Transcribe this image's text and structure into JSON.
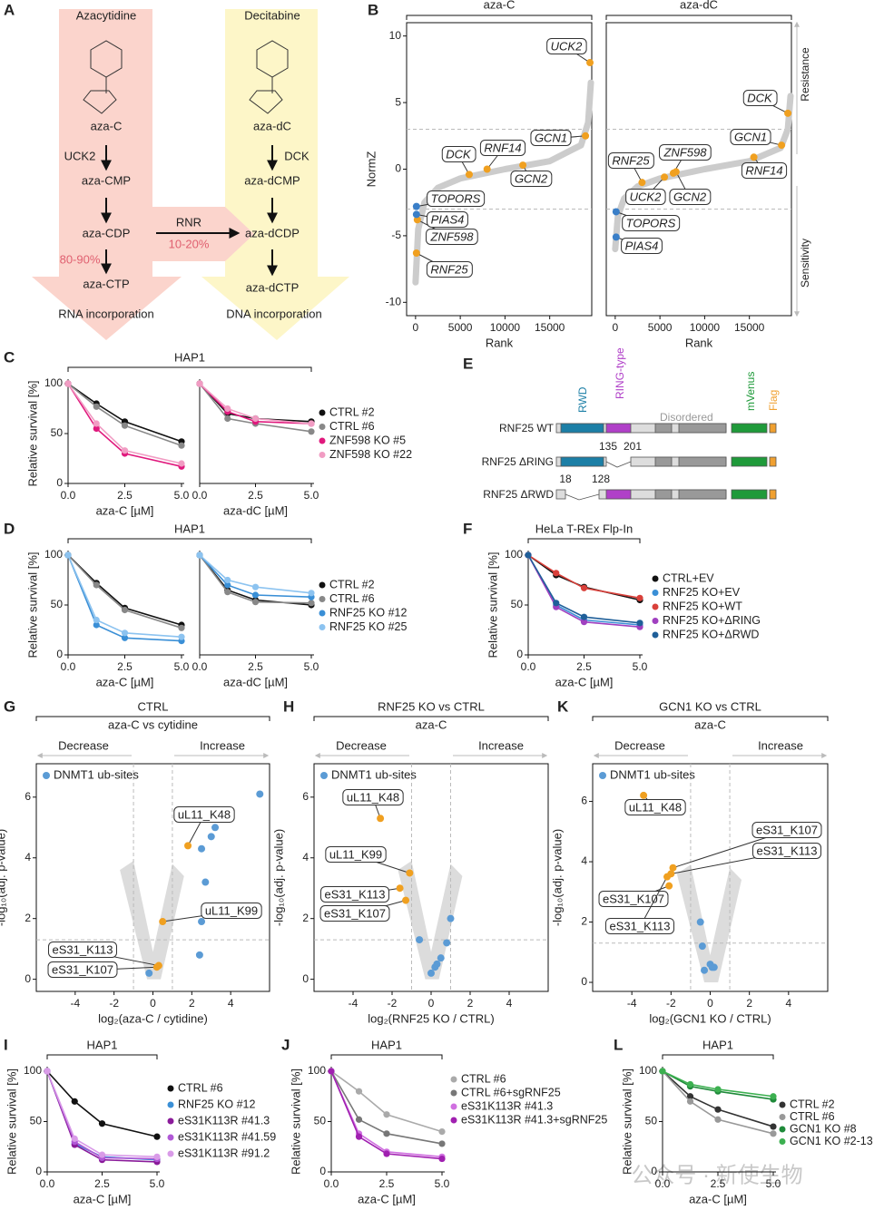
{
  "panel_a": {
    "panel": "A",
    "left": {
      "drug": "Azacytidine",
      "nucleoside": "aza-C",
      "enzyme": "UCK2",
      "steps": [
        "aza-CMP",
        "aza-CDP",
        "aza-CTP"
      ],
      "fraction": "80-90%",
      "fate": "RNA incorporation"
    },
    "right": {
      "drug": "Decitabine",
      "nucleoside": "aza-dC",
      "enzyme": "DCK",
      "steps": [
        "aza-dCMP",
        "aza-dCDP",
        "aza-dCTP"
      ],
      "fate": "DNA incorporation"
    },
    "rnr": "RNR",
    "rnr_fraction": "10-20%"
  },
  "panel_e": {
    "panel": "E",
    "domains": [
      "RWD",
      "RING-type",
      "Disordered",
      "mVenus",
      "Flag"
    ],
    "constructs": [
      "RNF25 WT",
      "RNF25 ΔRING",
      "RNF25 ΔRWD"
    ],
    "ring_cut": [
      "135",
      "201"
    ],
    "rwd_cut": [
      "18",
      "128"
    ]
  },
  "watermark": "公众号 · 新使生物",
  "chart_data": [
    {
      "type": "scatter",
      "panel": "B",
      "title": "aza-C",
      "ylabel": "NormZ",
      "xlabel": "Rank",
      "xlim": [
        -1000,
        19700
      ],
      "ylim": [
        -11,
        11
      ],
      "xticks": [
        0,
        5000,
        10000,
        15000
      ],
      "yticks": [
        -10,
        -5,
        0,
        5,
        10
      ],
      "reference_lines": {
        "y": [
          3,
          -3
        ]
      },
      "series": [
        {
          "color": "#cccccc",
          "line": true,
          "x": [
            0,
            300,
            1000,
            2500,
            5000,
            10000,
            15000,
            18500,
            19300,
            19600
          ],
          "values": [
            -8.5,
            -4.5,
            -2.5,
            -1.4,
            -0.7,
            0,
            0.6,
            1.8,
            3.5,
            6.5
          ]
        },
        {
          "color": "#f0a020",
          "labels": [
            "UCK2",
            "GCN1",
            "GCN2",
            "RNF14",
            "DCK",
            "ZNF598",
            "RNF25"
          ],
          "x": [
            19500,
            19000,
            12000,
            8000,
            6000,
            200,
            100
          ],
          "values": [
            8,
            2.5,
            0.3,
            0,
            -0.4,
            -3.8,
            -6.3
          ]
        },
        {
          "color": "#3a7fc8",
          "labels": [
            "TOPORS",
            "PIAS4"
          ],
          "x": [
            100,
            100
          ],
          "values": [
            -2.8,
            -3.4
          ]
        }
      ]
    },
    {
      "type": "scatter",
      "title": "aza-dC",
      "xlabel": "Rank",
      "xlim": [
        -1000,
        19700
      ],
      "ylim": [
        -11,
        11
      ],
      "xticks": [
        0,
        5000,
        10000,
        15000
      ],
      "reference_lines": {
        "y": [
          3,
          -3
        ]
      },
      "annotations": [
        "Resistance",
        "Sensitivity"
      ],
      "series": [
        {
          "color": "#cccccc",
          "line": true,
          "x": [
            0,
            300,
            1000,
            2500,
            5000,
            10000,
            15000,
            18500,
            19300,
            19600
          ],
          "values": [
            -6,
            -3.5,
            -2.2,
            -1.3,
            -0.7,
            0,
            0.6,
            1.6,
            3,
            5.5
          ]
        },
        {
          "color": "#f0a020",
          "labels": [
            "DCK",
            "GCN1",
            "RNF14",
            "ZNF598",
            "RNF25",
            "UCK2",
            "GCN2"
          ],
          "x": [
            19300,
            18600,
            15500,
            6500,
            3000,
            5500,
            6800
          ],
          "values": [
            4.2,
            1.8,
            0.9,
            -0.3,
            -1,
            -0.6,
            -0.2
          ]
        },
        {
          "color": "#3a7fc8",
          "labels": [
            "TOPORS",
            "PIAS4"
          ],
          "x": [
            100,
            100
          ],
          "values": [
            -3.2,
            -5.1
          ]
        }
      ]
    },
    {
      "type": "line",
      "panel": "C",
      "title": "HAP1",
      "ylabel": "Relative survival [%]",
      "xlabel": "aza-C [µM]",
      "x": [
        0,
        1.25,
        2.5,
        5
      ],
      "xlim": [
        0,
        5
      ],
      "ylim": [
        0,
        100
      ],
      "xticks": [
        {
          "value": 0,
          "label": "0.0"
        },
        {
          "value": 2.5,
          "label": "2.5"
        },
        {
          "value": 5,
          "label": "5.0"
        }
      ],
      "yticks": [
        0,
        50,
        100
      ],
      "series": [
        {
          "color": "#111111",
          "values": [
            100,
            80,
            62,
            42
          ]
        },
        {
          "color": "#888888",
          "values": [
            100,
            77,
            58,
            38
          ]
        },
        {
          "color": "#e0197d",
          "values": [
            100,
            55,
            30,
            17
          ]
        },
        {
          "color": "#f19cc3",
          "values": [
            100,
            60,
            33,
            20
          ]
        }
      ]
    },
    {
      "type": "line",
      "xlabel": "aza-dC [µM]",
      "x": [
        0,
        1.25,
        2.5,
        5
      ],
      "xlim": [
        0,
        5
      ],
      "ylim": [
        0,
        100
      ],
      "xticks": [
        {
          "value": 0,
          "label": "0.0"
        },
        {
          "value": 2.5,
          "label": "2.5"
        },
        {
          "value": 5,
          "label": "5.0"
        }
      ],
      "series": [
        {
          "name": "CTRL #2",
          "color": "#111111",
          "values": [
            100,
            70,
            65,
            62
          ]
        },
        {
          "name": "CTRL #6",
          "color": "#888888",
          "values": [
            100,
            65,
            60,
            52
          ]
        },
        {
          "name": "ZNF598 KO #5",
          "color": "#e0197d",
          "values": [
            100,
            72,
            62,
            60
          ]
        },
        {
          "name": "ZNF598 KO #22",
          "color": "#f19cc3",
          "values": [
            100,
            75,
            65,
            60
          ]
        }
      ]
    },
    {
      "type": "line",
      "panel": "D",
      "title": "HAP1",
      "ylabel": "Relative survival [%]",
      "xlabel": "aza-C [µM]",
      "x": [
        0,
        1.25,
        2.5,
        5
      ],
      "xlim": [
        0,
        5
      ],
      "ylim": [
        0,
        100
      ],
      "xticks": [
        {
          "value": 0,
          "label": "0.0"
        },
        {
          "value": 2.5,
          "label": "2.5"
        },
        {
          "value": 5,
          "label": "5.0"
        }
      ],
      "yticks": [
        0,
        50,
        100
      ],
      "series": [
        {
          "color": "#111111",
          "values": [
            100,
            72,
            47,
            30
          ]
        },
        {
          "color": "#888888",
          "values": [
            100,
            70,
            45,
            27
          ]
        },
        {
          "color": "#3a8fd6",
          "values": [
            100,
            30,
            17,
            14
          ]
        },
        {
          "color": "#8cc3f0",
          "values": [
            100,
            35,
            22,
            18
          ]
        }
      ]
    },
    {
      "type": "line",
      "xlabel": "aza-dC [µM]",
      "x": [
        0,
        1.25,
        2.5,
        5
      ],
      "xlim": [
        0,
        5
      ],
      "ylim": [
        0,
        100
      ],
      "xticks": [
        {
          "value": 0,
          "label": "0.0"
        },
        {
          "value": 2.5,
          "label": "2.5"
        },
        {
          "value": 5,
          "label": "5.0"
        }
      ],
      "series": [
        {
          "name": "CTRL #2",
          "color": "#111111",
          "values": [
            100,
            65,
            55,
            50
          ]
        },
        {
          "name": "CTRL #6",
          "color": "#888888",
          "values": [
            100,
            63,
            53,
            52
          ]
        },
        {
          "name": "RNF25 KO #12",
          "color": "#3a8fd6",
          "values": [
            100,
            70,
            60,
            58
          ]
        },
        {
          "name": "RNF25 KO #25",
          "color": "#8cc3f0",
          "values": [
            100,
            75,
            68,
            62
          ]
        }
      ]
    },
    {
      "type": "line",
      "panel": "F",
      "title": "HeLa T-REx Flp-In",
      "ylabel": "Relative survival [%]",
      "xlabel": "aza-C [µM]",
      "x": [
        0,
        1.25,
        2.5,
        5
      ],
      "xlim": [
        0,
        5
      ],
      "ylim": [
        0,
        100
      ],
      "xticks": [
        {
          "value": 0,
          "label": "0.0"
        },
        {
          "value": 2.5,
          "label": "2.5"
        },
        {
          "value": 5,
          "label": "5.0"
        }
      ],
      "yticks": [
        0,
        50,
        100
      ],
      "series": [
        {
          "name": "CTRL+EV",
          "color": "#111111",
          "values": [
            100,
            80,
            68,
            55
          ]
        },
        {
          "name": "RNF25 KO+EV",
          "color": "#3a8fd6",
          "values": [
            100,
            50,
            35,
            30
          ]
        },
        {
          "name": "RNF25 KO+WT",
          "color": "#d9403a",
          "values": [
            100,
            82,
            67,
            57
          ]
        },
        {
          "name": "RNF25 KO+ΔRING",
          "color": "#a040c0",
          "values": [
            100,
            48,
            33,
            28
          ]
        },
        {
          "name": "RNF25 KO+ΔRWD",
          "color": "#1f5f99",
          "values": [
            100,
            52,
            38,
            32
          ]
        }
      ]
    },
    {
      "type": "scatter",
      "panel": "G",
      "title": "CTRL",
      "subtitle": "aza-C vs cytidine",
      "annotations": [
        "Decrease",
        "Increase"
      ],
      "xlabel": "log₂(aza-C / cytidine)",
      "ylabel": "-log₁₀(adj. p-value)",
      "xlim": [
        -6,
        6
      ],
      "ylim": [
        -0.4,
        7.1
      ],
      "xticks": [
        -4,
        -2,
        0,
        2,
        4
      ],
      "yticks": [
        0,
        2,
        4,
        6
      ],
      "reference_lines": {
        "x": [
          -1,
          1
        ],
        "y": [
          1.3
        ]
      },
      "series": [
        {
          "name": "DNMT1 ub-sites",
          "color": "#5b9bd5",
          "x": [
            5.5,
            3.2,
            3.0,
            2.5,
            2.7,
            2.5,
            2.4,
            -0.2
          ],
          "values": [
            6.1,
            5.0,
            4.7,
            4.3,
            3.2,
            1.9,
            0.8,
            0.2
          ]
        },
        {
          "color": "#f0a020",
          "labels": [
            "uL11_K48",
            "uL11_K99",
            "eS31_K113",
            "eS31_K107"
          ],
          "x": [
            1.8,
            0.5,
            0.3,
            0.2
          ],
          "values": [
            4.4,
            1.9,
            0.45,
            0.4
          ]
        }
      ]
    },
    {
      "type": "scatter",
      "panel": "H",
      "title": "RNF25 KO vs CTRL",
      "subtitle": "aza-C",
      "annotations": [
        "Decrease",
        "Increase"
      ],
      "xlabel": "log₂(RNF25 KO / CTRL)",
      "ylabel": "-log₁₀(adj. p-value)",
      "xlim": [
        -6,
        6
      ],
      "ylim": [
        -0.4,
        7.1
      ],
      "xticks": [
        -4,
        -2,
        0,
        2,
        4
      ],
      "yticks": [
        0,
        2,
        4,
        6
      ],
      "reference_lines": {
        "x": [
          -1,
          1
        ],
        "y": [
          1.3
        ]
      },
      "series": [
        {
          "name": "DNMT1 ub-sites",
          "color": "#5b9bd5",
          "x": [
            0,
            0.3,
            0.5,
            -0.6,
            0.8,
            1.0,
            0.2
          ],
          "values": [
            0.2,
            0.5,
            0.7,
            1.3,
            1.2,
            2.0,
            0.4
          ]
        },
        {
          "color": "#f0a020",
          "labels": [
            "uL11_K48",
            "uL11_K99",
            "eS31_K113",
            "eS31_K107"
          ],
          "x": [
            -2.6,
            -1.1,
            -1.6,
            -1.3
          ],
          "values": [
            5.3,
            3.5,
            3.0,
            2.6
          ]
        }
      ]
    },
    {
      "type": "scatter",
      "panel": "K",
      "title": "GCN1 KO vs CTRL",
      "subtitle": "aza-C",
      "annotations": [
        "Decrease",
        "Increase"
      ],
      "xlabel": "log₂(GCN1 KO / CTRL)",
      "ylabel": "-log₁₀(adj. p-value)",
      "xlim": [
        -6,
        6
      ],
      "ylim": [
        -0.3,
        7.25
      ],
      "xticks": [
        -4,
        -2,
        0,
        2,
        4
      ],
      "yticks": [
        0,
        2,
        4,
        6
      ],
      "reference_lines": {
        "x": [
          -1,
          1
        ],
        "y": [
          1.3
        ]
      },
      "series": [
        {
          "name": "DNMT1 ub-sites",
          "color": "#5b9bd5",
          "x": [
            -0.5,
            -0.4,
            0,
            0.1,
            -0.3,
            0.2
          ],
          "values": [
            2.0,
            1.2,
            0.6,
            0.5,
            0.4,
            0.5
          ]
        },
        {
          "color": "#f0a020",
          "labels": [
            "uL11_K48",
            "eS31_K107",
            "eS31_K113",
            "eS31_K107",
            "eS31_K113"
          ],
          "x": [
            -3.4,
            -1.9,
            -2.0,
            -2.1,
            -2.2
          ],
          "values": [
            6.2,
            3.8,
            3.6,
            3.2,
            3.5
          ]
        }
      ]
    },
    {
      "type": "line",
      "panel": "I",
      "title": "HAP1",
      "ylabel": "Relative survival [%]",
      "xlabel": "aza-C [µM]",
      "x": [
        0,
        1.25,
        2.5,
        5
      ],
      "xlim": [
        0,
        5
      ],
      "ylim": [
        0,
        100
      ],
      "xticks": [
        {
          "value": 0,
          "label": "0.0"
        },
        {
          "value": 2.5,
          "label": "2.5"
        },
        {
          "value": 5,
          "label": "5.0"
        }
      ],
      "yticks": [
        0,
        50,
        100
      ],
      "series": [
        {
          "name": "CTRL #6",
          "color": "#111111",
          "values": [
            100,
            70,
            48,
            35
          ]
        },
        {
          "name": "RNF25 KO #12",
          "color": "#3a8fd6",
          "values": [
            100,
            28,
            15,
            12
          ]
        },
        {
          "name": "eS31K113R #41.3",
          "color": "#8a1b9a",
          "values": [
            100,
            27,
            12,
            10
          ]
        },
        {
          "name": "eS31K113R #41.59",
          "color": "#b058d6",
          "values": [
            100,
            30,
            14,
            13
          ]
        },
        {
          "name": "eS31K113R #91.2",
          "color": "#d99be8",
          "values": [
            100,
            33,
            17,
            15
          ]
        }
      ]
    },
    {
      "type": "line",
      "panel": "J",
      "title": "HAP1",
      "ylabel": "Relative survival [%]",
      "xlabel": "aza-C [µM]",
      "x": [
        0,
        1.25,
        2.5,
        5
      ],
      "xlim": [
        0,
        5
      ],
      "ylim": [
        0,
        100
      ],
      "xticks": [
        {
          "value": 0,
          "label": "0.0"
        },
        {
          "value": 2.5,
          "label": "2.5"
        },
        {
          "value": 5,
          "label": "5.0"
        }
      ],
      "yticks": [
        0,
        50,
        100
      ],
      "series": [
        {
          "name": "CTRL #6",
          "color": "#aaaaaa",
          "values": [
            100,
            80,
            57,
            40
          ]
        },
        {
          "name": "CTRL #6+sgRNF25",
          "color": "#777777",
          "values": [
            100,
            52,
            38,
            28
          ]
        },
        {
          "name": "eS31K113R #41.3",
          "color": "#d070e0",
          "values": [
            100,
            38,
            20,
            15
          ]
        },
        {
          "name": "eS31K113R #41.3+sgRNF25",
          "color": "#a020b0",
          "values": [
            100,
            35,
            18,
            13
          ]
        }
      ]
    },
    {
      "type": "line",
      "panel": "L",
      "title": "HAP1",
      "ylabel": "Relative survival [%]",
      "xlabel": "aza-C [µM]",
      "x": [
        0,
        1.25,
        2.5,
        5
      ],
      "xlim": [
        0,
        5
      ],
      "ylim": [
        0,
        100
      ],
      "xticks": [
        {
          "value": 0,
          "label": "0.0"
        },
        {
          "value": 2.5,
          "label": "2.5"
        },
        {
          "value": 5,
          "label": "5.0"
        }
      ],
      "yticks": [
        0,
        50,
        100
      ],
      "series": [
        {
          "name": "CTRL #2",
          "color": "#333333",
          "values": [
            100,
            75,
            62,
            45
          ]
        },
        {
          "name": "CTRL #6",
          "color": "#999999",
          "values": [
            100,
            70,
            52,
            38
          ]
        },
        {
          "name": "GCN1 KO #8",
          "color": "#1f8a3a",
          "values": [
            100,
            85,
            80,
            72
          ]
        },
        {
          "name": "GCN1 KO #2-13",
          "color": "#3cb050",
          "values": [
            100,
            87,
            82,
            75
          ]
        }
      ]
    }
  ]
}
